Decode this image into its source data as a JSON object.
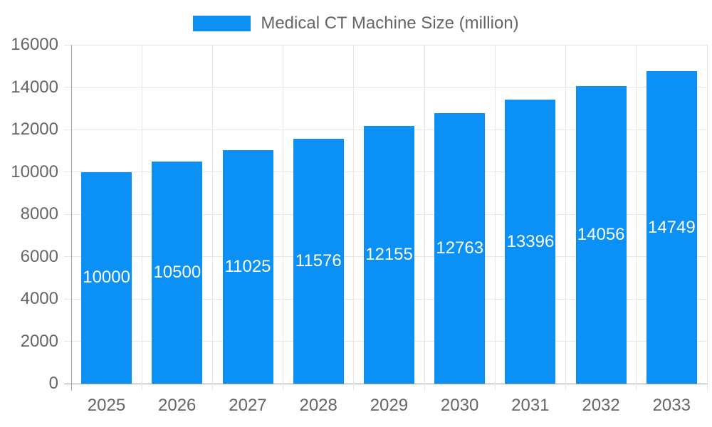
{
  "chart_data": {
    "type": "bar",
    "title": "Medical CT Machine Size (million)",
    "legend": {
      "position": "top",
      "entries": [
        "Medical CT Machine Size (million)"
      ]
    },
    "categories": [
      "2025",
      "2026",
      "2027",
      "2028",
      "2029",
      "2030",
      "2031",
      "2032",
      "2033"
    ],
    "series": [
      {
        "name": "Medical CT Machine Size (million)",
        "values": [
          10000,
          10500,
          11025,
          11576,
          12155,
          12763,
          13396,
          14056,
          14749
        ]
      }
    ],
    "values": [
      10000,
      10500,
      11025,
      11576,
      12155,
      12763,
      13396,
      14056,
      14749
    ],
    "bar_value_labels": [
      "10000",
      "10500",
      "11025",
      "11576",
      "12155",
      "12763",
      "13396",
      "14056",
      "14749"
    ],
    "xlabel": "",
    "ylabel": "",
    "ylim": [
      0,
      16000
    ],
    "yticks": [
      0,
      2000,
      4000,
      6000,
      8000,
      10000,
      12000,
      14000,
      16000
    ],
    "grid": true,
    "value_label_position": "inside-center",
    "colors": {
      "bar": "#0B90F5",
      "value_label": "#FFFFFF",
      "tick_text": "#666666",
      "legend_text": "#666666",
      "grid": "#E6E6E6",
      "axis": "#9E9E9E",
      "background": "#FFFFFF"
    }
  }
}
